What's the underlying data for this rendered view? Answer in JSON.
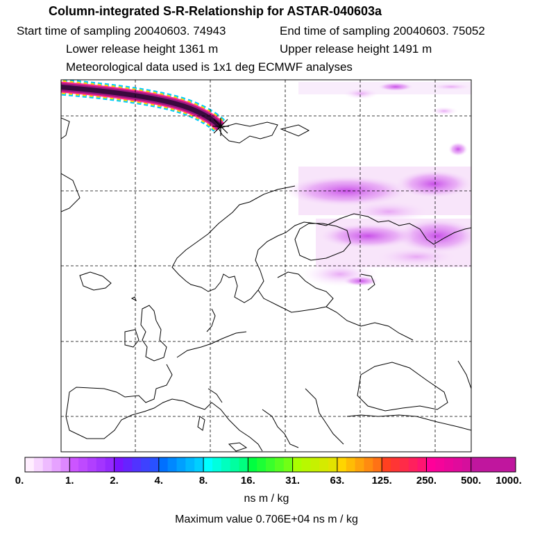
{
  "chart_data": {
    "type": "heatmap",
    "title": "Column-integrated S-R-Relationship for ASTAR-040603a",
    "start_label": "Start time of sampling 20040603. 74943",
    "end_label": "End time of sampling 20040603. 75052",
    "lower_label": "Lower release height 1361 m",
    "upper_label": "Upper release height 1491 m",
    "met_label": "Meteorological data used is 1x1 deg ECMWF analyses",
    "colorbar": {
      "ticks": [
        "0.",
        "1.",
        "2.",
        "4.",
        "8.",
        "16.",
        "31.",
        "63.",
        "125.",
        "250.",
        "500.",
        "1000."
      ],
      "segment_colors": [
        "#ffeeff",
        "#cc55ff",
        "#7a14ff",
        "#0070ff",
        "#00ffff",
        "#00ff40",
        "#aaff00",
        "#ffd500",
        "#ff4020",
        "#ff0099",
        "#c0169e"
      ],
      "units": "ns m / kg"
    },
    "max_value_label": "Maximum value  0.706E+04 ns m / kg"
  }
}
